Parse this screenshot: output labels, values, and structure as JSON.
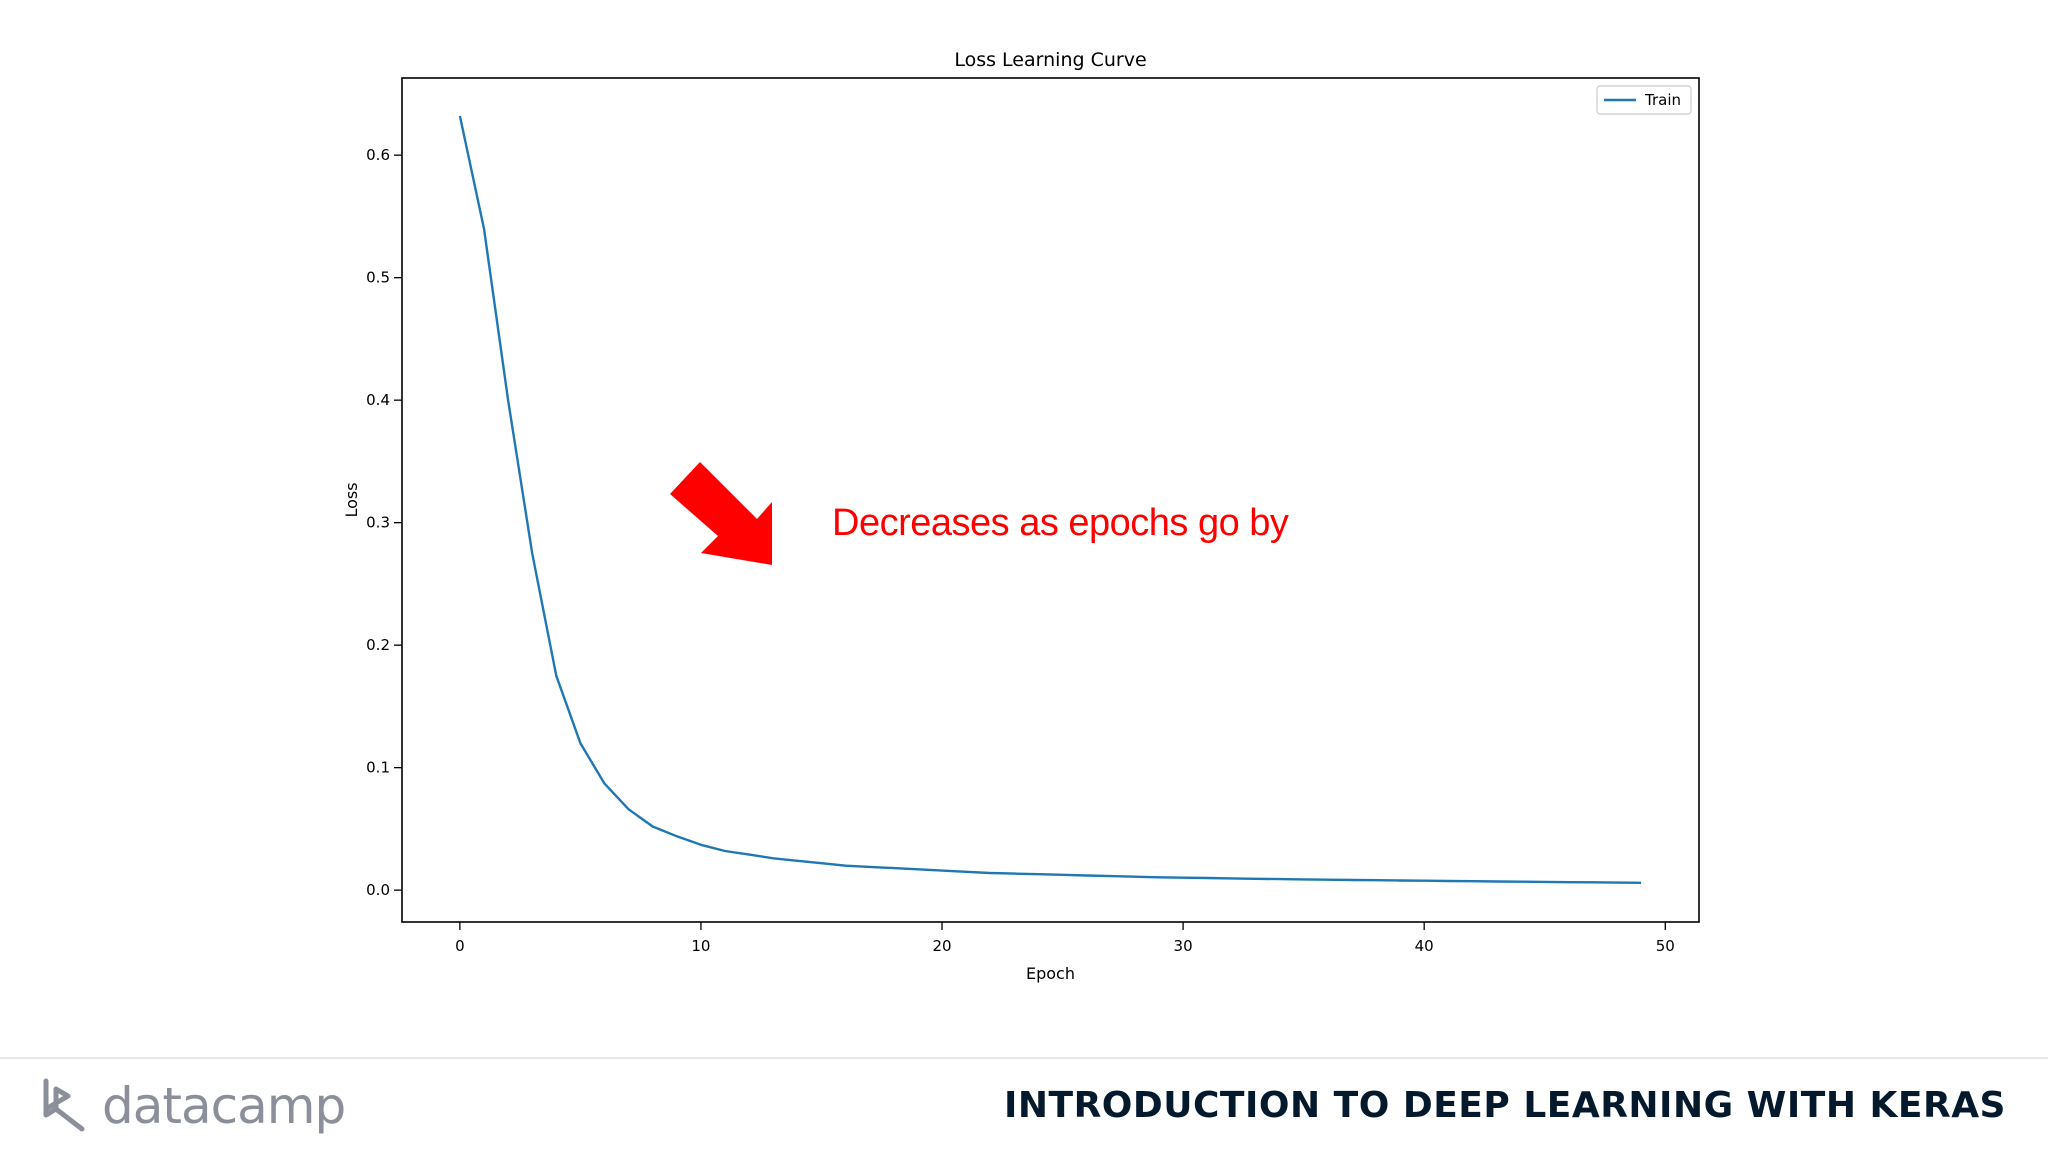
{
  "chart_data": {
    "type": "line",
    "title": "Loss Learning Curve",
    "xlabel": "Epoch",
    "ylabel": "Loss",
    "xlim": [
      -2.4,
      51.4
    ],
    "ylim": [
      -0.026,
      0.663
    ],
    "x_ticks": [
      0,
      10,
      20,
      30,
      40,
      50
    ],
    "y_ticks": [
      0.0,
      0.1,
      0.2,
      0.3,
      0.4,
      0.5,
      0.6
    ],
    "grid": false,
    "legend_position": "top-right",
    "series": [
      {
        "name": "Train",
        "color": "#1f77b4",
        "x": [
          0,
          1,
          2,
          3,
          4,
          5,
          6,
          7,
          8,
          9,
          10,
          11,
          12,
          13,
          14,
          15,
          16,
          17,
          18,
          19,
          20,
          21,
          22,
          23,
          24,
          25,
          26,
          27,
          28,
          29,
          30,
          31,
          32,
          33,
          34,
          35,
          36,
          37,
          38,
          39,
          40,
          41,
          42,
          43,
          44,
          45,
          46,
          47,
          48,
          49
        ],
        "y": [
          0.632,
          0.54,
          0.4,
          0.275,
          0.175,
          0.12,
          0.087,
          0.066,
          0.052,
          0.044,
          0.037,
          0.032,
          0.029,
          0.026,
          0.024,
          0.022,
          0.02,
          0.019,
          0.018,
          0.017,
          0.016,
          0.015,
          0.014,
          0.0135,
          0.013,
          0.0125,
          0.012,
          0.0115,
          0.011,
          0.0105,
          0.0102,
          0.0099,
          0.0096,
          0.0093,
          0.009,
          0.0088,
          0.0085,
          0.0083,
          0.0081,
          0.0079,
          0.0077,
          0.0075,
          0.0073,
          0.0071,
          0.0069,
          0.0067,
          0.0065,
          0.0064,
          0.0062,
          0.006
        ]
      }
    ]
  },
  "annotation": {
    "text": "Decreases as epochs go by",
    "color": "#ff0000",
    "arrow_icon": "arrow-down-right-icon"
  },
  "footer": {
    "brand": "datacamp",
    "brand_icon": "datacamp-logo-icon",
    "course_title": "INTRODUCTION TO DEEP LEARNING WITH KERAS"
  }
}
